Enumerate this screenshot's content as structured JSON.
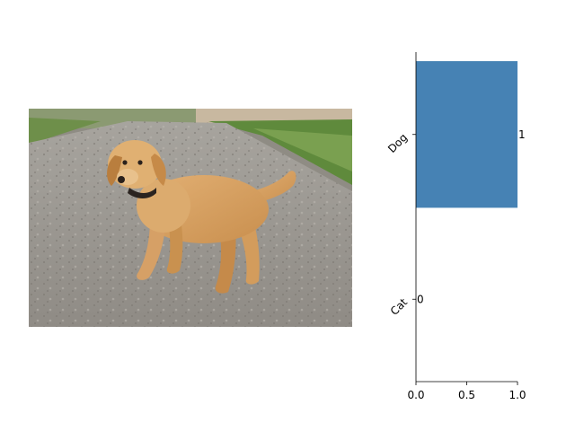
{
  "image_panel": {
    "subject_icon": "puppy-photo"
  },
  "chart_data": {
    "type": "bar",
    "orientation": "horizontal",
    "categories": [
      "Dog",
      "Cat"
    ],
    "values": [
      1,
      0
    ],
    "data_labels": [
      "1",
      "0"
    ],
    "xlim": [
      0,
      1
    ],
    "x_ticks": [
      "0.0",
      "0.5",
      "1.0"
    ],
    "bar_color": "#4682b4",
    "grid": false,
    "legend": "none"
  }
}
